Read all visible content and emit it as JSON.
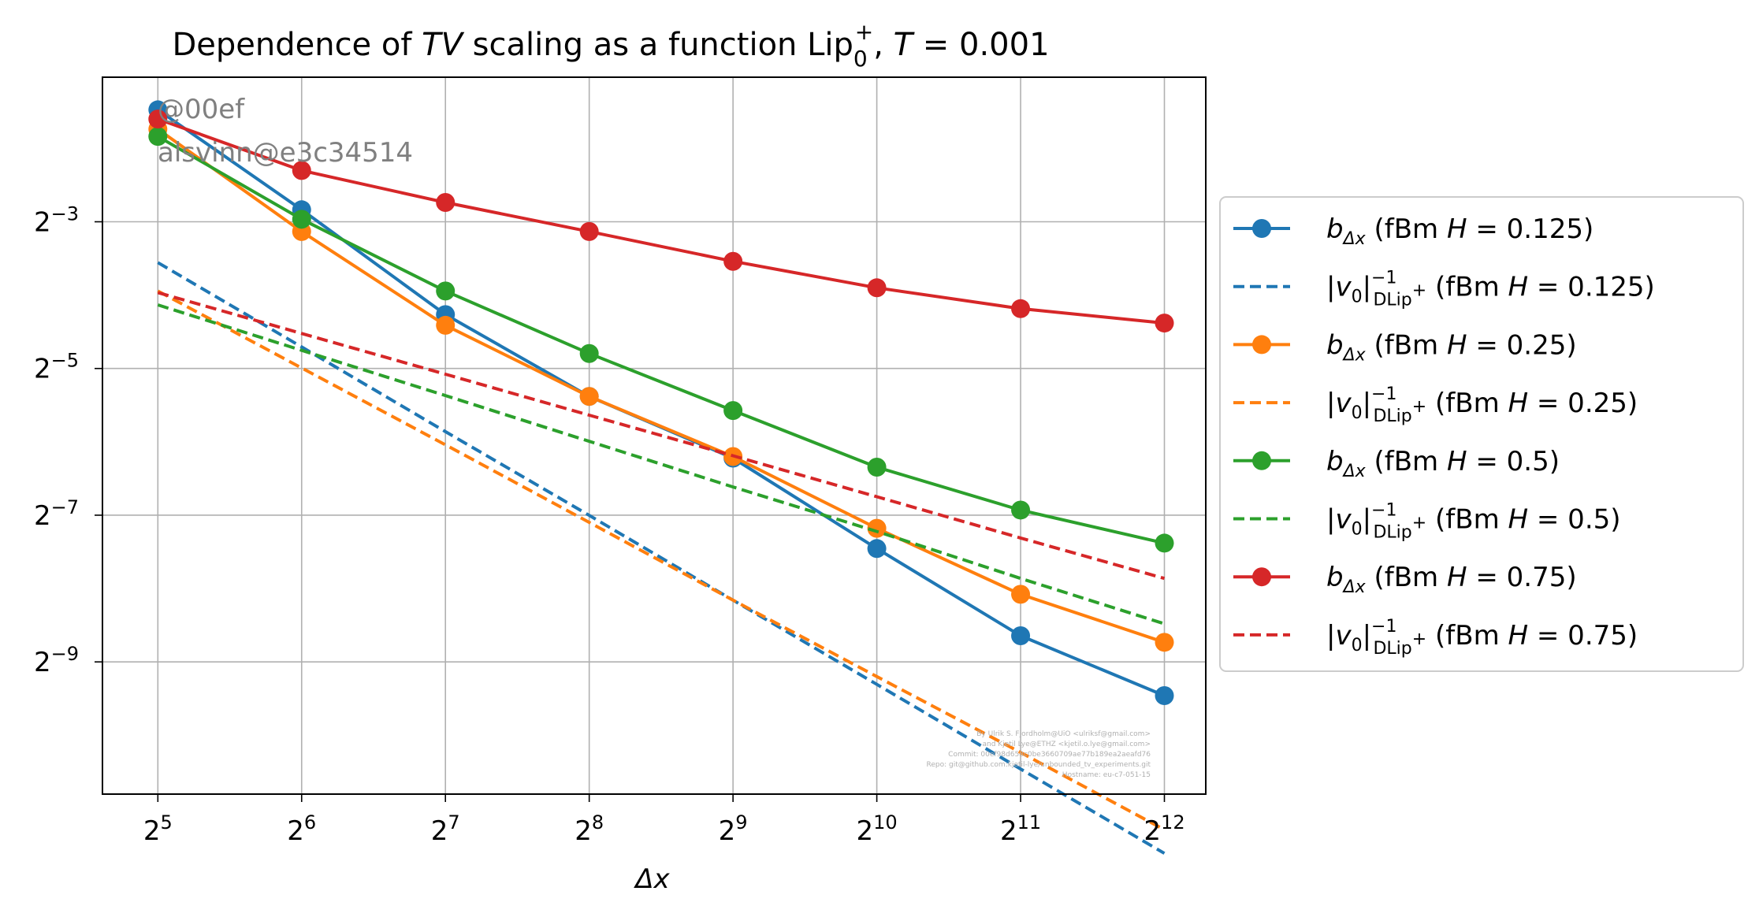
{
  "chart_data": {
    "type": "line",
    "title": "Dependence of TV scaling as a function Lip0+, T = 0.001",
    "title_parts": {
      "prefix": "Dependence of ",
      "tv": "TV",
      "mid": " scaling as a function Lip",
      "sub": "0",
      "sup": "+",
      "after": ", ",
      "T": "T",
      "eq": " = 0.001"
    },
    "xlabel": "Δx",
    "x_scale": "log2",
    "y_scale": "log2",
    "xlim": [
      24.5,
      5000
    ],
    "ylim": [
      0.00056,
      0.49
    ],
    "grid": true,
    "legend_position": "right, outside",
    "x": [
      32,
      64,
      128,
      256,
      512,
      1024,
      2048,
      4096
    ],
    "x_ticks": [
      {
        "base": "2",
        "exp": "5"
      },
      {
        "base": "2",
        "exp": "6"
      },
      {
        "base": "2",
        "exp": "7"
      },
      {
        "base": "2",
        "exp": "8"
      },
      {
        "base": "2",
        "exp": "9"
      },
      {
        "base": "2",
        "exp": "10"
      },
      {
        "base": "2",
        "exp": "11"
      },
      {
        "base": "2",
        "exp": "12"
      }
    ],
    "y_ticks": [
      {
        "base": "2",
        "exp": "−3",
        "value": 0.125
      },
      {
        "base": "2",
        "exp": "−5",
        "value": 0.03125
      },
      {
        "base": "2",
        "exp": "−7",
        "value": 0.0078125
      },
      {
        "base": "2",
        "exp": "−9",
        "value": 0.001953125
      }
    ],
    "series": [
      {
        "name": "b_Δx (fBm H = 0.125)",
        "legend": {
          "sym": "b",
          "sub": "Δx",
          "rest": " (fBm ",
          "H": "H",
          "val": " = 0.125)"
        },
        "color": "#1f77b4",
        "style": "solid",
        "marker": "circle",
        "values": [
          0.36,
          0.14,
          0.052,
          0.024,
          0.0134,
          0.0057,
          0.0025,
          0.00142
        ]
      },
      {
        "name": "|v0|^-1_DLip+ (fBm H = 0.125)",
        "legend": {
          "sym": "|v",
          "sub": "0",
          "bar": "|",
          "sup": "−1",
          "sub2": "DLip",
          "sup2": "+",
          "rest": " (fBm ",
          "H": "H",
          "val": " = 0.125)"
        },
        "color": "#1f77b4",
        "style": "dashed",
        "marker": "none",
        "values": [
          0.085,
          0.0383,
          0.0172,
          0.0078,
          0.0035,
          0.00158,
          0.00071,
          0.00032
        ]
      },
      {
        "name": "b_Δx (fBm H = 0.25)",
        "legend": {
          "sym": "b",
          "sub": "Δx",
          "rest": " (fBm ",
          "H": "H",
          "val": " = 0.25)"
        },
        "color": "#ff7f0e",
        "style": "solid",
        "marker": "circle",
        "values": [
          0.3,
          0.114,
          0.047,
          0.024,
          0.0136,
          0.0069,
          0.0037,
          0.00235
        ]
      },
      {
        "name": "|v0|^-1_DLip+ (fBm H = 0.25)",
        "legend": {
          "sym": "|v",
          "sub": "0",
          "bar": "|",
          "sup": "−1",
          "sub2": "DLip",
          "sup2": "+",
          "rest": " (fBm ",
          "H": "H",
          "val": " = 0.25)"
        },
        "color": "#ff7f0e",
        "style": "dashed",
        "marker": "none",
        "values": [
          0.065,
          0.0314,
          0.0152,
          0.0073,
          0.0035,
          0.0017,
          0.00083,
          0.0004
        ]
      },
      {
        "name": "b_Δx (fBm H = 0.5)",
        "legend": {
          "sym": "b",
          "sub": "Δx",
          "rest": " (fBm ",
          "H": "H",
          "val": " = 0.5)"
        },
        "color": "#2ca02c",
        "style": "solid",
        "marker": "circle",
        "values": [
          0.28,
          0.128,
          0.065,
          0.036,
          0.021,
          0.0123,
          0.0082,
          0.006
        ]
      },
      {
        "name": "|v0|^-1_DLip+ (fBm H = 0.5)",
        "legend": {
          "sym": "|v",
          "sub": "0",
          "bar": "|",
          "sup": "−1",
          "sub2": "DLip",
          "sup2": "+",
          "rest": " (fBm ",
          "H": "H",
          "val": " = 0.5)"
        },
        "color": "#2ca02c",
        "style": "dashed",
        "marker": "none",
        "values": [
          0.057,
          0.0371,
          0.0242,
          0.0157,
          0.0102,
          0.0067,
          0.0043,
          0.0028
        ]
      },
      {
        "name": "b_Δx (fBm H = 0.75)",
        "legend": {
          "sym": "b",
          "sub": "Δx",
          "rest": " (fBm ",
          "H": "H",
          "val": " = 0.75)"
        },
        "color": "#d62728",
        "style": "solid",
        "marker": "circle",
        "values": [
          0.33,
          0.203,
          0.15,
          0.114,
          0.086,
          0.067,
          0.055,
          0.048
        ]
      },
      {
        "name": "|v0|^-1_DLip+ (fBm H = 0.75)",
        "legend": {
          "sym": "|v",
          "sub": "0",
          "bar": "|",
          "sup": "−1",
          "sub2": "DLip",
          "sup2": "+",
          "rest": " (fBm ",
          "H": "H",
          "val": " = 0.75)"
        },
        "color": "#d62728",
        "style": "dashed",
        "marker": "none",
        "values": [
          0.064,
          0.0435,
          0.0296,
          0.0201,
          0.0137,
          0.0093,
          0.0063,
          0.0043
        ]
      }
    ]
  },
  "watermark": {
    "line1": "@00ef",
    "line2": "alsvinn@e3c34514"
  },
  "credits": [
    "By Ulrik S. Fjordholm@UiO <ulriksf@gmail.com>",
    "and Kjetil Lye@ETHZ <kjetil.o.lye@gmail.com>",
    "Commit: 00ef98d658c0be3660709ae77b189ea2aeafd76",
    "Repo: git@github.com:kjetil-lye/unbounded_tv_experiments.git",
    "Hostname: eu-c7-051-15"
  ]
}
